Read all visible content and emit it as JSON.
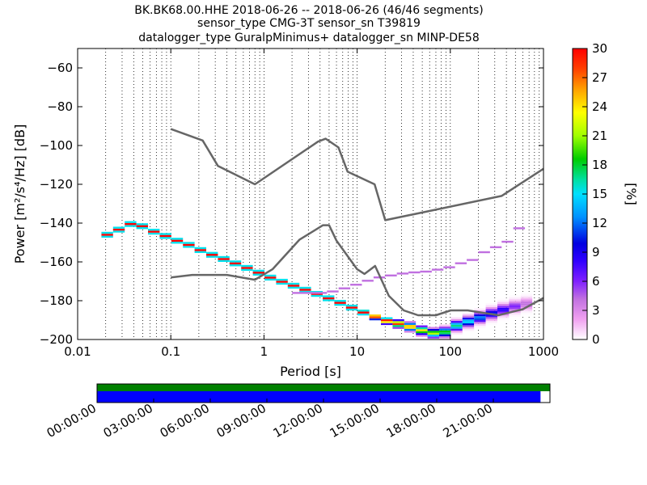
{
  "chart_data": [
    {
      "type": "heatmap",
      "title_lines": [
        "BK.BK68.00.HHE   2018-06-26 -- 2018-06-26  (46/46 segments)",
        "sensor_type CMG-3T sensor_sn T39819",
        "datalogger_type GuralpMinimus+ datalogger_sn MINP-DE58"
      ],
      "xlabel": "Period [s]",
      "ylabel": "Power [m²/s⁴/Hz] [dB]",
      "xscale": "log",
      "xlim": [
        0.01,
        1000
      ],
      "ylim": [
        -200,
        -50
      ],
      "x_ticks": [
        0.01,
        0.1,
        1,
        10,
        100,
        1000
      ],
      "x_tick_labels": [
        "0.01",
        "0.1",
        "1",
        "10",
        "100",
        "1000"
      ],
      "y_ticks": [
        -60,
        -80,
        -100,
        -120,
        -140,
        -160,
        -180,
        -200
      ],
      "grid": "dotted vertical",
      "colorbar": {
        "label": "[%]",
        "range": [
          0,
          30
        ],
        "ticks": [
          0,
          3,
          6,
          9,
          12,
          15,
          18,
          21,
          24,
          27,
          30
        ]
      },
      "series": [
        {
          "role": "nhnm",
          "x": [
            0.1,
            0.22,
            0.32,
            0.8,
            3.8,
            4.6,
            6.3,
            7.9,
            15.4,
            20,
            354.8,
            1000
          ],
          "y": [
            -91.5,
            -97.4,
            -110.5,
            -120,
            -98,
            -96.5,
            -101,
            -113.5,
            -120,
            -138.5,
            -126,
            -112
          ]
        },
        {
          "role": "nlnm",
          "x": [
            0.1,
            0.17,
            0.4,
            0.8,
            1.24,
            2.4,
            4.3,
            5,
            6,
            10,
            12,
            15.6,
            21.9,
            31.6,
            45,
            70,
            101,
            154,
            328,
            600,
            1000
          ],
          "y": [
            -168,
            -166.7,
            -166.7,
            -169.2,
            -163.7,
            -148.6,
            -141.1,
            -141.1,
            -149,
            -163.8,
            -166.2,
            -162.1,
            -177.5,
            -185,
            -187.5,
            -187.5,
            -185,
            -185,
            -187.5,
            -184.4,
            -178.6
          ]
        },
        {
          "role": "ppsd-mode",
          "x": [
            0.018,
            0.02,
            0.025,
            0.03,
            0.034,
            0.04,
            0.05,
            0.06,
            0.08,
            0.1,
            0.15,
            0.2,
            0.3,
            0.5,
            0.8,
            1,
            1.5,
            2,
            3,
            5,
            8,
            10,
            15,
            20,
            30,
            40,
            60,
            80,
            100,
            150,
            200,
            300,
            500,
            700
          ],
          "y": [
            -146,
            -145,
            -143,
            -141,
            -140,
            -141,
            -143,
            -145,
            -147,
            -149,
            -152,
            -155,
            -158,
            -162,
            -166,
            -168,
            -171,
            -173,
            -176,
            -180,
            -184,
            -186,
            -189,
            -191,
            -193,
            -195,
            -197,
            -196,
            -193,
            -190,
            -188,
            -185,
            -182,
            -181
          ]
        },
        {
          "role": "spurious-high-branch",
          "x": [
            2,
            3,
            4,
            5,
            6,
            8,
            10,
            12,
            15,
            20,
            25,
            30,
            40,
            50,
            60,
            70,
            80,
            100,
            120,
            150,
            200,
            350,
            600
          ],
          "y": [
            -176,
            -176,
            -176,
            -175,
            -174,
            -172,
            -171,
            -169,
            -168,
            -167,
            -166,
            -166,
            -165,
            -165,
            -164,
            -164,
            -163,
            -162,
            -160,
            -159,
            -155,
            -150,
            -137
          ]
        }
      ]
    },
    {
      "type": "timeline",
      "tick_labels": [
        "00:00:00",
        "03:00:00",
        "06:00:00",
        "09:00:00",
        "12:00:00",
        "15:00:00",
        "18:00:00",
        "21:00:00"
      ],
      "bars": [
        {
          "color": "#008000",
          "start_hour": 0,
          "end_hour": 24
        },
        {
          "color": "#0000ff",
          "start_hour": 0,
          "end_hour": 23.5
        }
      ]
    }
  ]
}
